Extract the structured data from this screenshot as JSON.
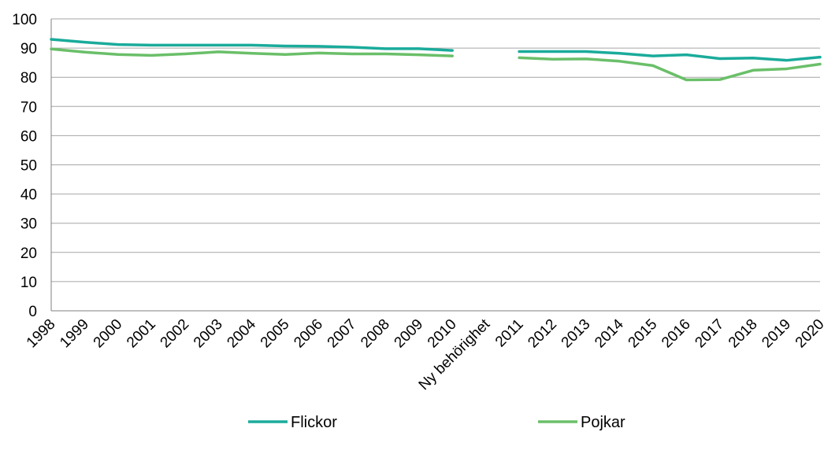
{
  "chart_data": {
    "type": "line",
    "title": "",
    "xlabel": "",
    "ylabel": "",
    "ylim": [
      0,
      100
    ],
    "yticks": [
      0,
      10,
      20,
      30,
      40,
      50,
      60,
      70,
      80,
      90,
      100
    ],
    "grid": "horizontal",
    "legend_position": "bottom",
    "categories": [
      "1998",
      "1999",
      "2000",
      "2001",
      "2002",
      "2003",
      "2004",
      "2005",
      "2006",
      "2007",
      "2008",
      "2009",
      "2010",
      "Ny behörighet",
      "2011",
      "2012",
      "2013",
      "2014",
      "2015",
      "2016",
      "2017",
      "2018",
      "2019",
      "2020"
    ],
    "series": [
      {
        "name": "Flickor",
        "color": "#1aab9b",
        "values": [
          93.0,
          92.0,
          91.2,
          91.0,
          91.0,
          91.0,
          91.0,
          90.7,
          90.6,
          90.3,
          89.8,
          89.8,
          89.2,
          null,
          88.8,
          88.8,
          88.8,
          88.2,
          87.3,
          87.7,
          86.4,
          86.6,
          85.8,
          86.9
        ]
      },
      {
        "name": "Pojkar",
        "color": "#6abf69",
        "values": [
          89.7,
          88.6,
          87.8,
          87.5,
          88.0,
          88.7,
          88.2,
          87.8,
          88.3,
          88.0,
          88.0,
          87.7,
          87.3,
          null,
          86.7,
          86.2,
          86.3,
          85.5,
          84.0,
          79.1,
          79.2,
          82.4,
          82.9,
          84.5
        ]
      }
    ]
  }
}
